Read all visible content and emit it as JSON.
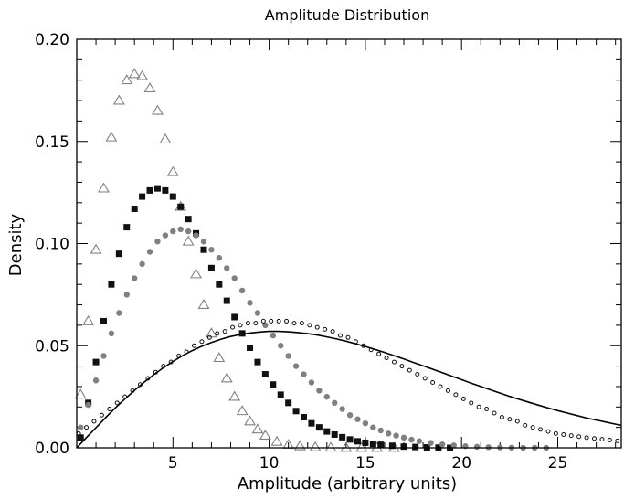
{
  "chart_data": {
    "type": "scatter",
    "title": "Amplitude Distribution",
    "xlabel": "Amplitude (arbitrary units)",
    "ylabel": "Density",
    "xlim": [
      0,
      28.3
    ],
    "ylim": [
      0,
      0.2
    ],
    "grid": false,
    "legend": "none",
    "xticks": [
      5,
      10,
      15,
      20,
      25
    ],
    "xtick_labels": [
      "5",
      "10",
      "15",
      "20",
      "25"
    ],
    "yticks": [
      0,
      0.05,
      0.1,
      0.15,
      0.2
    ],
    "ytick_labels": [
      "0.00",
      "0.05",
      "0.10",
      "0.15",
      "0.20"
    ],
    "series": [
      {
        "marker": "triangle-open",
        "color": "#808080",
        "x": [
          0.2,
          0.6,
          1.0,
          1.4,
          1.8,
          2.2,
          2.6,
          3.0,
          3.4,
          3.8,
          4.2,
          4.6,
          5.0,
          5.4,
          5.8,
          6.2,
          6.6,
          7.0,
          7.4,
          7.8,
          8.2,
          8.6,
          9.0,
          9.4,
          9.8,
          10.4,
          11.0,
          11.6,
          12.4,
          13.2,
          14.0,
          14.8,
          15.6,
          16.5
        ],
        "y": [
          0.026,
          0.062,
          0.097,
          0.127,
          0.152,
          0.17,
          0.18,
          0.183,
          0.182,
          0.176,
          0.165,
          0.151,
          0.135,
          0.118,
          0.101,
          0.085,
          0.07,
          0.056,
          0.044,
          0.034,
          0.025,
          0.018,
          0.013,
          0.009,
          0.006,
          0.003,
          0.0015,
          0.0008,
          0.0003,
          0.0001,
          0.0,
          0.0,
          0.0,
          0.0
        ]
      },
      {
        "marker": "square-filled",
        "color": "#111111",
        "x": [
          0.2,
          0.6,
          1.0,
          1.4,
          1.8,
          2.2,
          2.6,
          3.0,
          3.4,
          3.8,
          4.2,
          4.6,
          5.0,
          5.4,
          5.8,
          6.2,
          6.6,
          7.0,
          7.4,
          7.8,
          8.2,
          8.6,
          9.0,
          9.4,
          9.8,
          10.2,
          10.6,
          11.0,
          11.4,
          11.8,
          12.2,
          12.6,
          13.0,
          13.4,
          13.8,
          14.2,
          14.6,
          15.0,
          15.4,
          15.8,
          16.4,
          17.0,
          17.6,
          18.2,
          18.8,
          19.4
        ],
        "y": [
          0.005,
          0.022,
          0.042,
          0.062,
          0.08,
          0.095,
          0.108,
          0.117,
          0.123,
          0.126,
          0.127,
          0.126,
          0.123,
          0.118,
          0.112,
          0.105,
          0.097,
          0.088,
          0.08,
          0.072,
          0.064,
          0.056,
          0.049,
          0.042,
          0.036,
          0.031,
          0.026,
          0.022,
          0.018,
          0.015,
          0.012,
          0.01,
          0.008,
          0.0065,
          0.0052,
          0.0041,
          0.0032,
          0.0025,
          0.0019,
          0.0015,
          0.001,
          0.0006,
          0.0004,
          0.0002,
          0.0001,
          0.0
        ]
      },
      {
        "marker": "circle-filled",
        "color": "#808080",
        "x": [
          0.2,
          0.6,
          1.0,
          1.4,
          1.8,
          2.2,
          2.6,
          3.0,
          3.4,
          3.8,
          4.2,
          4.6,
          5.0,
          5.4,
          5.8,
          6.2,
          6.6,
          7.0,
          7.4,
          7.8,
          8.2,
          8.6,
          9.0,
          9.4,
          9.8,
          10.2,
          10.6,
          11.0,
          11.4,
          11.8,
          12.2,
          12.6,
          13.0,
          13.4,
          13.8,
          14.2,
          14.6,
          15.0,
          15.4,
          15.8,
          16.2,
          16.6,
          17.0,
          17.4,
          17.8,
          18.4,
          19.0,
          19.6,
          20.2,
          20.8,
          21.4,
          22.0,
          22.6,
          23.2,
          23.8,
          24.4
        ],
        "y": [
          0.01,
          0.021,
          0.033,
          0.045,
          0.056,
          0.066,
          0.075,
          0.083,
          0.09,
          0.096,
          0.101,
          0.104,
          0.106,
          0.107,
          0.106,
          0.104,
          0.101,
          0.097,
          0.093,
          0.088,
          0.083,
          0.077,
          0.071,
          0.066,
          0.06,
          0.055,
          0.05,
          0.045,
          0.04,
          0.036,
          0.032,
          0.028,
          0.025,
          0.022,
          0.019,
          0.016,
          0.014,
          0.012,
          0.01,
          0.0085,
          0.007,
          0.006,
          0.005,
          0.004,
          0.0033,
          0.0024,
          0.0017,
          0.0012,
          0.0008,
          0.0005,
          0.0003,
          0.0002,
          0.0001,
          0.0,
          0.0,
          0.0
        ]
      },
      {
        "marker": "circle-open-small",
        "color": "#111111",
        "x": [
          0.1,
          0.5,
          0.9,
          1.3,
          1.7,
          2.1,
          2.5,
          2.9,
          3.3,
          3.7,
          4.1,
          4.5,
          4.9,
          5.3,
          5.7,
          6.1,
          6.5,
          6.9,
          7.3,
          7.7,
          8.1,
          8.5,
          8.9,
          9.3,
          9.7,
          10.1,
          10.5,
          10.9,
          11.3,
          11.7,
          12.1,
          12.5,
          12.9,
          13.3,
          13.7,
          14.1,
          14.5,
          14.9,
          15.3,
          15.7,
          16.1,
          16.5,
          16.9,
          17.3,
          17.7,
          18.1,
          18.5,
          18.9,
          19.3,
          19.7,
          20.1,
          20.5,
          20.9,
          21.3,
          21.7,
          22.1,
          22.5,
          22.9,
          23.3,
          23.7,
          24.1,
          24.5,
          24.9,
          25.3,
          25.7,
          26.1,
          26.5,
          26.9,
          27.3,
          27.7,
          28.1
        ],
        "y": [
          0.007,
          0.01,
          0.013,
          0.016,
          0.019,
          0.022,
          0.025,
          0.028,
          0.031,
          0.034,
          0.037,
          0.04,
          0.042,
          0.045,
          0.047,
          0.05,
          0.052,
          0.054,
          0.056,
          0.057,
          0.059,
          0.06,
          0.061,
          0.061,
          0.062,
          0.062,
          0.062,
          0.062,
          0.061,
          0.061,
          0.06,
          0.059,
          0.058,
          0.057,
          0.055,
          0.054,
          0.052,
          0.05,
          0.048,
          0.046,
          0.044,
          0.042,
          0.04,
          0.038,
          0.036,
          0.034,
          0.032,
          0.03,
          0.028,
          0.026,
          0.024,
          0.022,
          0.02,
          0.019,
          0.017,
          0.015,
          0.014,
          0.013,
          0.011,
          0.01,
          0.009,
          0.008,
          0.007,
          0.0065,
          0.006,
          0.0055,
          0.005,
          0.0046,
          0.0042,
          0.0038,
          0.0034
        ]
      }
    ],
    "fit_curve": {
      "color": "#000000",
      "x": [
        0,
        0.5,
        1,
        1.5,
        2,
        2.5,
        3,
        3.5,
        4,
        4.5,
        5,
        5.5,
        6,
        6.5,
        7,
        7.5,
        8,
        8.5,
        9,
        9.5,
        10,
        10.5,
        11,
        11.5,
        12,
        12.5,
        13,
        13.5,
        14,
        14.5,
        15,
        15.5,
        16,
        16.5,
        17,
        17.5,
        18,
        18.5,
        19,
        19.5,
        20,
        20.5,
        21,
        21.5,
        22,
        22.5,
        23,
        23.5,
        24,
        24.5,
        25,
        25.5,
        26,
        26.5,
        27,
        27.5,
        28,
        28.3
      ],
      "y": [
        0,
        0.005,
        0.0099,
        0.0148,
        0.0195,
        0.0239,
        0.0281,
        0.0321,
        0.0358,
        0.0392,
        0.0423,
        0.0451,
        0.0476,
        0.0497,
        0.0516,
        0.0532,
        0.0545,
        0.0555,
        0.0562,
        0.0567,
        0.057,
        0.057,
        0.0568,
        0.0564,
        0.0559,
        0.0552,
        0.0543,
        0.0533,
        0.0522,
        0.0509,
        0.0496,
        0.0482,
        0.0467,
        0.0451,
        0.0435,
        0.0418,
        0.0402,
        0.0385,
        0.0368,
        0.0351,
        0.0334,
        0.0317,
        0.03,
        0.0284,
        0.0268,
        0.0252,
        0.0237,
        0.0223,
        0.0209,
        0.0195,
        0.0182,
        0.017,
        0.0158,
        0.0146,
        0.0136,
        0.0126,
        0.0116,
        0.011
      ]
    }
  }
}
